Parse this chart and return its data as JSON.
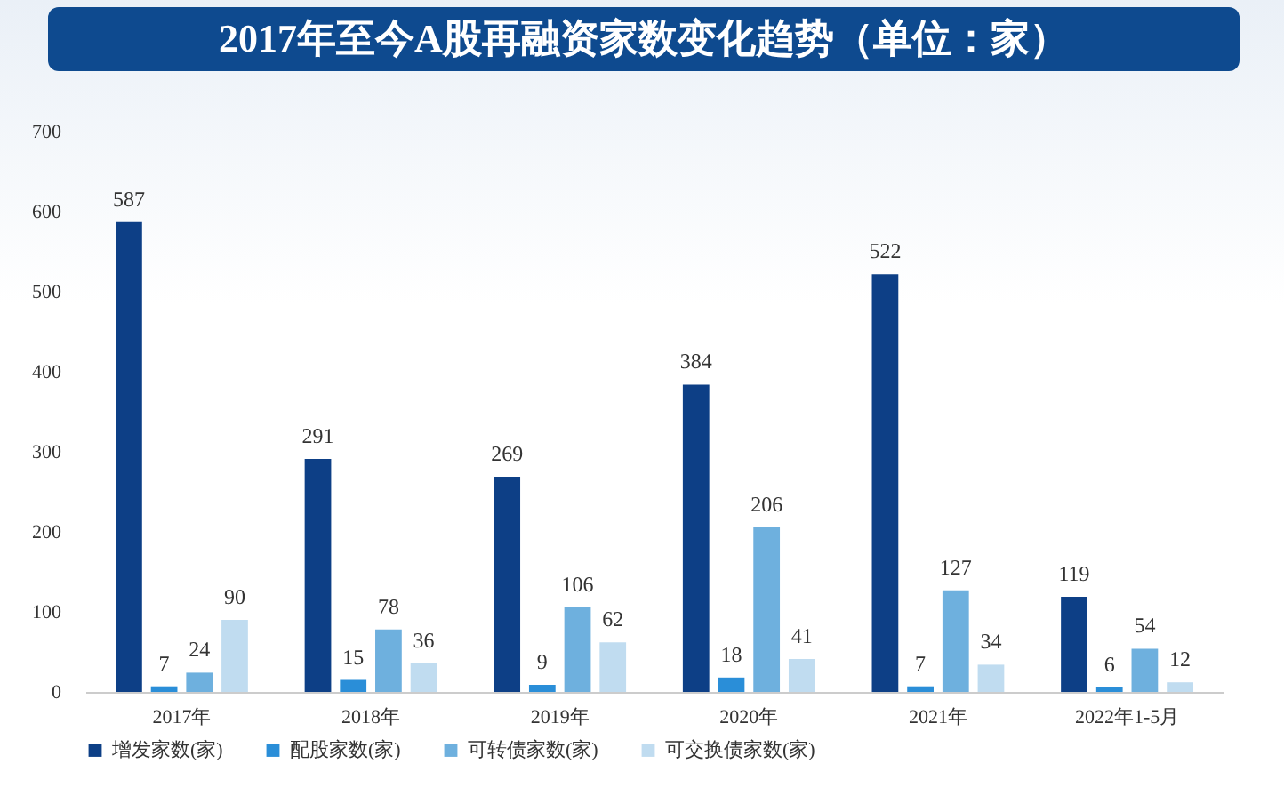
{
  "chart_data": {
    "type": "bar",
    "title": "2017年至今A股再融资家数变化趋势（单位：家）",
    "categories": [
      "2017年",
      "2018年",
      "2019年",
      "2020年",
      "2021年",
      "2022年1-5月"
    ],
    "series": [
      {
        "name": "增发家数(家)",
        "color": "#0d3f86",
        "values": [
          587,
          291,
          269,
          384,
          522,
          119
        ]
      },
      {
        "name": "配股家数(家)",
        "color": "#2a8ed8",
        "values": [
          7,
          15,
          9,
          18,
          7,
          6
        ]
      },
      {
        "name": "可转债家数(家)",
        "color": "#6eb0de",
        "values": [
          24,
          78,
          106,
          206,
          127,
          54
        ]
      },
      {
        "name": "可交换债家数(家)",
        "color": "#c0dcf0",
        "values": [
          90,
          36,
          62,
          41,
          34,
          12
        ]
      }
    ],
    "ylim": [
      0,
      700
    ],
    "yticks": [
      0,
      100,
      200,
      300,
      400,
      500,
      600,
      700
    ],
    "grid": false,
    "legend": "bottom",
    "data_labels": true
  }
}
